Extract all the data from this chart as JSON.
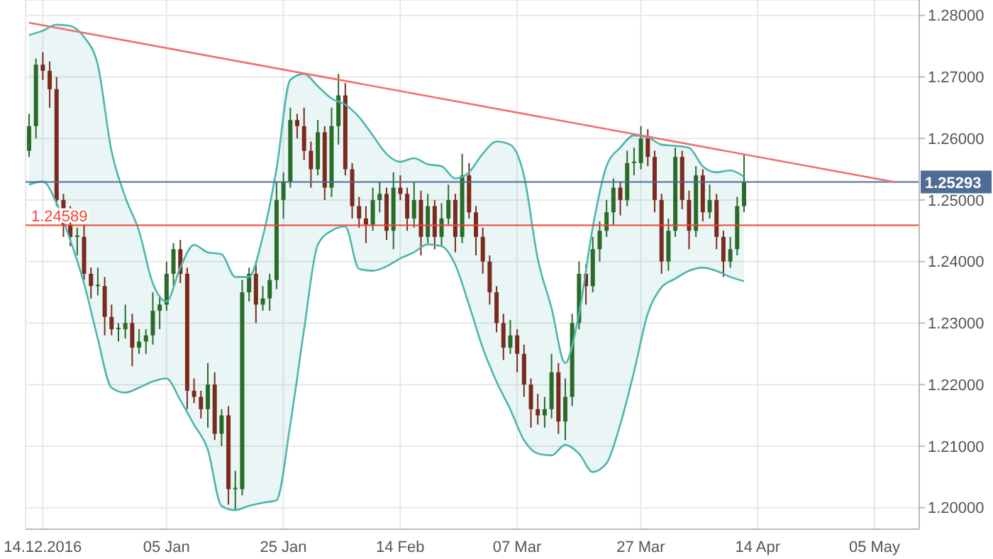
{
  "chart_data": {
    "type": "candlestick",
    "categories": [
      null,
      null,
      "14.12.2016",
      null,
      null,
      null,
      null,
      null,
      null,
      null,
      null,
      null,
      null,
      null,
      null,
      null,
      null,
      null,
      null,
      null,
      "05 Jan",
      null,
      null,
      null,
      null,
      null,
      null,
      null,
      null,
      null,
      null,
      null,
      null,
      null,
      null,
      null,
      null,
      "25 Jan",
      null,
      null,
      null,
      null,
      null,
      null,
      null,
      null,
      null,
      null,
      null,
      null,
      null,
      null,
      null,
      null,
      "14 Feb",
      null,
      null,
      null,
      null,
      null,
      null,
      null,
      null,
      null,
      null,
      null,
      null,
      null,
      null,
      null,
      null,
      "07 Mar",
      null,
      null,
      null,
      null,
      null,
      null,
      null,
      null,
      null,
      null,
      null,
      null,
      null,
      null,
      null,
      null,
      null,
      "27 Mar",
      null,
      null,
      null,
      null,
      null,
      null,
      null,
      null,
      null,
      null,
      null,
      null,
      null,
      null,
      null,
      null,
      "14 Apr",
      null,
      null,
      null,
      null,
      null,
      null,
      null,
      null,
      null,
      null,
      null,
      null,
      null,
      null,
      null,
      null,
      "05 May",
      null,
      null,
      null,
      null,
      null,
      null
    ],
    "ohlc": [
      [
        1.258,
        1.264,
        1.257,
        1.262
      ],
      [
        1.262,
        1.273,
        1.26,
        1.272
      ],
      [
        1.272,
        1.274,
        1.2695,
        1.271
      ],
      [
        1.271,
        1.2725,
        1.265,
        1.268
      ],
      [
        1.268,
        1.27,
        1.249,
        1.25
      ],
      [
        1.25,
        1.251,
        1.244,
        1.246
      ],
      [
        1.246,
        1.249,
        1.2425,
        1.244
      ],
      [
        1.244,
        1.2455,
        1.241,
        1.244
      ],
      [
        1.244,
        1.246,
        1.237,
        1.238
      ],
      [
        1.238,
        1.239,
        1.234,
        1.236
      ],
      [
        1.236,
        1.239,
        1.2345,
        1.236
      ],
      [
        1.236,
        1.2375,
        1.228,
        1.231
      ],
      [
        1.231,
        1.233,
        1.228,
        1.229
      ],
      [
        1.229,
        1.23,
        1.227,
        1.229
      ],
      [
        1.229,
        1.233,
        1.2275,
        1.23
      ],
      [
        1.23,
        1.2315,
        1.223,
        1.226
      ],
      [
        1.226,
        1.229,
        1.225,
        1.227
      ],
      [
        1.227,
        1.229,
        1.225,
        1.228
      ],
      [
        1.228,
        1.235,
        1.2265,
        1.232
      ],
      [
        1.232,
        1.2345,
        1.229,
        1.233
      ],
      [
        1.233,
        1.24,
        1.232,
        1.238
      ],
      [
        1.238,
        1.243,
        1.236,
        1.242
      ],
      [
        1.242,
        1.2435,
        1.2365,
        1.238
      ],
      [
        1.238,
        1.239,
        1.216,
        1.219
      ],
      [
        1.219,
        1.221,
        1.217,
        1.218
      ],
      [
        1.218,
        1.219,
        1.2145,
        1.216
      ],
      [
        1.216,
        1.2235,
        1.213,
        1.22
      ],
      [
        1.22,
        1.222,
        1.211,
        1.212
      ],
      [
        1.212,
        1.216,
        1.21,
        1.215
      ],
      [
        1.215,
        1.2165,
        1.2005,
        1.203
      ],
      [
        1.203,
        1.206,
        1.1995,
        1.203
      ],
      [
        1.203,
        1.237,
        1.202,
        1.235
      ],
      [
        1.235,
        1.239,
        1.2335,
        1.238
      ],
      [
        1.238,
        1.2395,
        1.23,
        1.233
      ],
      [
        1.233,
        1.236,
        1.232,
        1.234
      ],
      [
        1.234,
        1.238,
        1.232,
        1.237
      ],
      [
        1.237,
        1.253,
        1.2355,
        1.25
      ],
      [
        1.25,
        1.2545,
        1.247,
        1.253
      ],
      [
        1.253,
        1.265,
        1.252,
        1.263
      ],
      [
        1.263,
        1.264,
        1.26,
        1.262
      ],
      [
        1.262,
        1.265,
        1.2565,
        1.258
      ],
      [
        1.258,
        1.2595,
        1.252,
        1.255
      ],
      [
        1.255,
        1.263,
        1.254,
        1.261
      ],
      [
        1.261,
        1.262,
        1.25,
        1.252
      ],
      [
        1.252,
        1.265,
        1.2505,
        1.262
      ],
      [
        1.262,
        1.2705,
        1.259,
        1.267
      ],
      [
        1.267,
        1.269,
        1.254,
        1.255
      ],
      [
        1.255,
        1.256,
        1.247,
        1.249
      ],
      [
        1.249,
        1.2505,
        1.2455,
        1.247
      ],
      [
        1.247,
        1.249,
        1.243,
        1.246
      ],
      [
        1.246,
        1.252,
        1.245,
        1.25
      ],
      [
        1.25,
        1.253,
        1.248,
        1.251
      ],
      [
        1.251,
        1.252,
        1.2435,
        1.245
      ],
      [
        1.245,
        1.2545,
        1.242,
        1.252
      ],
      [
        1.252,
        1.254,
        1.25,
        1.251
      ],
      [
        1.251,
        1.252,
        1.245,
        1.247
      ],
      [
        1.247,
        1.253,
        1.2455,
        1.25
      ],
      [
        1.25,
        1.2515,
        1.241,
        1.244
      ],
      [
        1.244,
        1.251,
        1.243,
        1.249
      ],
      [
        1.249,
        1.25,
        1.242,
        1.244
      ],
      [
        1.244,
        1.2495,
        1.2425,
        1.247
      ],
      [
        1.247,
        1.2525,
        1.246,
        1.25
      ],
      [
        1.25,
        1.251,
        1.2415,
        1.244
      ],
      [
        1.244,
        1.2575,
        1.243,
        1.254
      ],
      [
        1.254,
        1.256,
        1.247,
        1.248
      ],
      [
        1.248,
        1.249,
        1.241,
        1.244
      ],
      [
        1.244,
        1.2455,
        1.238,
        1.24
      ],
      [
        1.24,
        1.241,
        1.233,
        1.235
      ],
      [
        1.235,
        1.236,
        1.2285,
        1.23
      ],
      [
        1.23,
        1.2315,
        1.224,
        1.226
      ],
      [
        1.226,
        1.2305,
        1.225,
        1.228
      ],
      [
        1.228,
        1.229,
        1.222,
        1.225
      ],
      [
        1.225,
        1.2265,
        1.218,
        1.22
      ],
      [
        1.22,
        1.221,
        1.213,
        1.216
      ],
      [
        1.216,
        1.2185,
        1.2135,
        1.215
      ],
      [
        1.215,
        1.218,
        1.213,
        1.216
      ],
      [
        1.216,
        1.225,
        1.2145,
        1.222
      ],
      [
        1.222,
        1.2235,
        1.212,
        1.214
      ],
      [
        1.214,
        1.221,
        1.211,
        1.218
      ],
      [
        1.218,
        1.2315,
        1.2165,
        1.23
      ],
      [
        1.23,
        1.24,
        1.229,
        1.238
      ],
      [
        1.238,
        1.2395,
        1.233,
        1.236
      ],
      [
        1.236,
        1.244,
        1.235,
        1.242
      ],
      [
        1.242,
        1.2465,
        1.24,
        1.245
      ],
      [
        1.245,
        1.25,
        1.244,
        1.248
      ],
      [
        1.248,
        1.2535,
        1.246,
        1.252
      ],
      [
        1.252,
        1.253,
        1.2475,
        1.25
      ],
      [
        1.25,
        1.258,
        1.249,
        1.256
      ],
      [
        1.256,
        1.2585,
        1.254,
        1.256
      ],
      [
        1.256,
        1.262,
        1.255,
        1.26
      ],
      [
        1.26,
        1.2615,
        1.2555,
        1.257
      ],
      [
        1.257,
        1.258,
        1.248,
        1.25
      ],
      [
        1.25,
        1.251,
        1.238,
        1.24
      ],
      [
        1.24,
        1.247,
        1.2385,
        1.245
      ],
      [
        1.245,
        1.2585,
        1.244,
        1.257
      ],
      [
        1.257,
        1.258,
        1.2485,
        1.25
      ],
      [
        1.25,
        1.2515,
        1.242,
        1.245
      ],
      [
        1.245,
        1.2555,
        1.244,
        1.254
      ],
      [
        1.254,
        1.255,
        1.2465,
        1.248
      ],
      [
        1.248,
        1.2525,
        1.247,
        1.25
      ],
      [
        1.25,
        1.251,
        1.242,
        1.244
      ],
      [
        1.244,
        1.245,
        1.2375,
        1.24
      ],
      [
        1.24,
        1.244,
        1.239,
        1.242
      ],
      [
        1.242,
        1.2505,
        1.241,
        1.249
      ],
      [
        1.249,
        1.2575,
        1.248,
        1.2529
      ],
      null,
      null,
      null,
      null,
      null,
      null,
      null,
      null,
      null,
      null,
      null,
      null,
      null,
      null,
      null,
      null,
      null,
      null,
      null,
      null,
      null,
      null,
      null,
      null,
      null
    ],
    "colors": [
      "#2a6b2a",
      "#2a6b2a",
      "#7a2a1e",
      "#7a2a1e",
      "#7a2a1e",
      "#7a2a1e",
      "#7a2a1e",
      "#2a6b2a",
      "#7a2a1e",
      "#7a2a1e",
      "#2a6b2a",
      "#7a2a1e",
      "#7a2a1e",
      "#2a6b2a",
      "#2a6b2a",
      "#7a2a1e",
      "#2a6b2a",
      "#2a6b2a",
      "#2a6b2a",
      "#2a6b2a",
      "#2a6b2a",
      "#2a6b2a",
      "#7a2a1e",
      "#7a2a1e",
      "#7a2a1e",
      "#7a2a1e",
      "#2a6b2a",
      "#7a2a1e",
      "#2a6b2a",
      "#7a2a1e",
      "#2a6b2a",
      "#2a6b2a",
      "#2a6b2a",
      "#7a2a1e",
      "#2a6b2a",
      "#2a6b2a",
      "#2a6b2a",
      "#2a6b2a",
      "#2a6b2a",
      "#7a2a1e",
      "#7a2a1e",
      "#7a2a1e",
      "#2a6b2a",
      "#7a2a1e",
      "#2a6b2a",
      "#2a6b2a",
      "#7a2a1e",
      "#7a2a1e",
      "#7a2a1e",
      "#7a2a1e",
      "#2a6b2a",
      "#2a6b2a",
      "#7a2a1e",
      "#2a6b2a",
      "#7a2a1e",
      "#7a2a1e",
      "#2a6b2a",
      "#7a2a1e",
      "#2a6b2a",
      "#7a2a1e",
      "#2a6b2a",
      "#2a6b2a",
      "#7a2a1e",
      "#2a6b2a",
      "#7a2a1e",
      "#7a2a1e",
      "#7a2a1e",
      "#7a2a1e",
      "#7a2a1e",
      "#7a2a1e",
      "#2a6b2a",
      "#7a2a1e",
      "#7a2a1e",
      "#7a2a1e",
      "#7a2a1e",
      "#2a6b2a",
      "#2a6b2a",
      "#7a2a1e",
      "#2a6b2a",
      "#2a6b2a",
      "#2a6b2a",
      "#7a2a1e",
      "#2a6b2a",
      "#2a6b2a",
      "#2a6b2a",
      "#2a6b2a",
      "#7a2a1e",
      "#2a6b2a",
      "#2a6b2a",
      "#2a6b2a",
      "#7a2a1e",
      "#7a2a1e",
      "#7a2a1e",
      "#2a6b2a",
      "#2a6b2a",
      "#7a2a1e",
      "#7a2a1e",
      "#2a6b2a",
      "#7a2a1e",
      "#2a6b2a",
      "#7a2a1e",
      "#7a2a1e",
      "#2a6b2a",
      "#2a6b2a",
      "#2a6b2a",
      null,
      null,
      null,
      null,
      null,
      null,
      null,
      null,
      null,
      null,
      null,
      null,
      null,
      null,
      null,
      null,
      null,
      null,
      null,
      null,
      null,
      null,
      null,
      null,
      null
    ],
    "series": [
      {
        "type": "area",
        "color": "#4db6ac",
        "values": [
          1.2768,
          null,
          1.2775,
          null,
          1.2785,
          null,
          1.2783,
          null,
          1.2765,
          null,
          1.272,
          null,
          1.258,
          null,
          1.2505,
          null,
          1.245,
          null,
          1.2365,
          null,
          1.2335,
          null,
          1.239,
          null,
          1.2427,
          null,
          1.2415,
          null,
          1.2412,
          null,
          1.2375,
          null,
          1.2375,
          null,
          1.244,
          null,
          1.255,
          null,
          1.2695,
          null,
          1.2705,
          null,
          1.2685,
          null,
          1.2665,
          null,
          1.2655,
          null,
          1.2635,
          null,
          1.2605,
          null,
          1.2575,
          null,
          1.2562,
          null,
          1.2568,
          null,
          1.2558,
          null,
          1.2555,
          null,
          1.2535,
          null,
          1.2545,
          null,
          1.2575,
          null,
          1.2595,
          null,
          1.259,
          null,
          1.254,
          null,
          1.2405,
          null,
          1.2325,
          null,
          1.2235,
          null,
          1.2315,
          null,
          1.2455,
          null,
          1.2555,
          null,
          1.2585,
          null,
          1.2605,
          null,
          1.2602,
          null,
          1.259,
          null,
          1.2588,
          null,
          1.2585,
          null,
          1.2555,
          null,
          1.2545,
          null,
          1.2548,
          null,
          1.2538,
          null,
          null,
          null,
          null,
          null,
          null,
          null,
          null,
          null,
          null,
          null,
          null,
          null,
          null,
          null,
          null,
          null,
          null,
          null,
          null,
          null,
          null,
          null,
          null,
          null
        ]
      },
      {
        "type": "line",
        "color": "#4db6ac",
        "values": [
          1.2525,
          null,
          1.253,
          null,
          1.2495,
          null,
          1.2435,
          null,
          1.2365,
          null,
          1.2275,
          null,
          1.2195,
          null,
          1.2187,
          null,
          1.2195,
          null,
          1.2205,
          null,
          1.221,
          null,
          1.2175,
          null,
          1.2135,
          null,
          1.2095,
          null,
          1.2003,
          null,
          1.1996,
          null,
          1.2003,
          null,
          1.2008,
          null,
          1.2012,
          null,
          1.2134,
          null,
          1.2288,
          null,
          1.2427,
          null,
          1.245,
          null,
          1.2457,
          null,
          1.2388,
          null,
          1.2385,
          null,
          1.2392,
          null,
          1.2405,
          null,
          1.2415,
          null,
          1.2428,
          null,
          1.2425,
          null,
          1.2395,
          null,
          1.233,
          null,
          1.226,
          null,
          1.2205,
          null,
          1.216,
          null,
          1.211,
          null,
          1.2088,
          null,
          1.2085,
          null,
          1.2102,
          null,
          1.2088,
          null,
          1.2058,
          null,
          1.2072,
          null,
          1.2135,
          null,
          1.222,
          null,
          1.2315,
          null,
          1.2358,
          null,
          1.2372,
          null,
          1.2385,
          null,
          1.239,
          null,
          1.2385,
          null,
          1.2375,
          null,
          1.2368,
          null,
          null,
          null,
          null,
          null,
          null,
          null,
          null,
          null,
          null,
          null,
          null,
          null,
          null,
          null,
          null,
          null,
          null,
          null,
          null,
          null,
          null,
          null,
          null,
          null
        ]
      },
      {
        "type": "line",
        "color": "#f07070",
        "values": [
          1.2788,
          null,
          null,
          null,
          null,
          null,
          null,
          null,
          null,
          null,
          null,
          null,
          null,
          null,
          null,
          null,
          null,
          null,
          null,
          null,
          null,
          null,
          null,
          null,
          null,
          null,
          null,
          null,
          null,
          null,
          null,
          null,
          null,
          null,
          null,
          null,
          null,
          null,
          null,
          null,
          null,
          null,
          null,
          null,
          null,
          null,
          null,
          null,
          null,
          null,
          null,
          null,
          null,
          null,
          null,
          null,
          null,
          null,
          null,
          null,
          null,
          null,
          null,
          null,
          null,
          null,
          null,
          null,
          null,
          null,
          null,
          null,
          null,
          null,
          null,
          null,
          null,
          null,
          null,
          null,
          null,
          null,
          null,
          null,
          null,
          null,
          null,
          null,
          null,
          null,
          null,
          null,
          null,
          null,
          null,
          null,
          null,
          null,
          null,
          null,
          null,
          null,
          null,
          null,
          null,
          null,
          null,
          null,
          null,
          null,
          null,
          null,
          null,
          null,
          null,
          null,
          null,
          null,
          null,
          null,
          null,
          null,
          null,
          null,
          null,
          null,
          1.2529,
          null,
          null,
          null
        ]
      }
    ],
    "ylim": [
      1.1965,
      1.2825
    ],
    "yticks": [
      {
        "value": 1.2,
        "label": "1.20000"
      },
      {
        "value": 1.21,
        "label": "1.21000"
      },
      {
        "value": 1.22,
        "label": "1.22000"
      },
      {
        "value": 1.23,
        "label": "1.23000"
      },
      {
        "value": 1.24,
        "label": "1.24000"
      },
      {
        "value": 1.25,
        "label": "1.25000"
      },
      {
        "value": 1.26,
        "label": "1.26000"
      },
      {
        "value": 1.27,
        "label": "1.27000"
      },
      {
        "value": 1.28,
        "label": "1.28000"
      }
    ],
    "ref_lines": [
      {
        "axis": "y",
        "value": 1.24589,
        "label": "1.24589",
        "color": "#f44336"
      },
      {
        "axis": "y",
        "value": 1.25293,
        "label": "1.25293",
        "color": "#4f6d94"
      }
    ],
    "grid": true
  }
}
